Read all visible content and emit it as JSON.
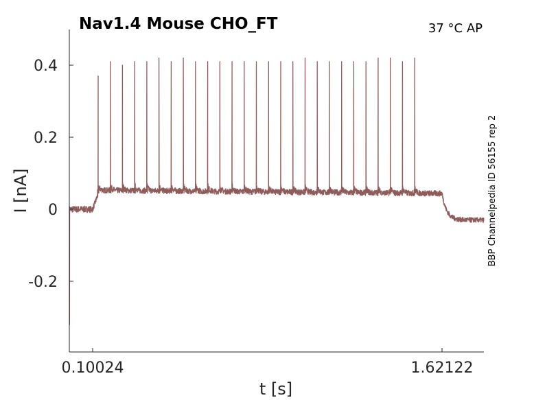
{
  "chart_data": {
    "type": "line",
    "title": "Nav1.4  Mouse  CHO_FT",
    "condition_label": "37 °C  AP",
    "side_label": "BBP Channelpedia ID 56155 rep 2",
    "xlabel": "t [s]",
    "ylabel": "I [nA]",
    "xlim": [
      0.0,
      1.8
    ],
    "ylim": [
      -0.4,
      0.5
    ],
    "x_ticks": [
      {
        "value": 0.10024,
        "label": "0.10024"
      },
      {
        "value": 1.62122,
        "label": "1.62122"
      }
    ],
    "y_ticks": [
      {
        "value": 0.4,
        "label": "0.4"
      },
      {
        "value": 0.2,
        "label": "0.2"
      },
      {
        "value": 0.0,
        "label": "0"
      },
      {
        "value": -0.2,
        "label": "-0.2"
      }
    ],
    "grid": false,
    "legend": "none",
    "line_color": "#8f5c5c",
    "series": [
      {
        "stim_on": 0.10024,
        "stim_off": 1.62122,
        "baseline_pre": 0.0,
        "baseline_post": -0.03,
        "plateau": 0.045,
        "initial_transient_min": -0.32,
        "spike_times": [
          0.124,
          0.177,
          0.23,
          0.283,
          0.336,
          0.389,
          0.442,
          0.495,
          0.548,
          0.601,
          0.654,
          0.707,
          0.76,
          0.813,
          0.866,
          0.919,
          0.972,
          1.025,
          1.078,
          1.131,
          1.184,
          1.237,
          1.29,
          1.343,
          1.396,
          1.449,
          1.502
        ],
        "spike_peaks": [
          0.37,
          0.41,
          0.4,
          0.41,
          0.41,
          0.42,
          0.41,
          0.42,
          0.41,
          0.41,
          0.41,
          0.41,
          0.41,
          0.41,
          0.41,
          0.41,
          0.41,
          0.42,
          0.41,
          0.41,
          0.41,
          0.41,
          0.41,
          0.42,
          0.42,
          0.41,
          0.42
        ]
      }
    ]
  }
}
